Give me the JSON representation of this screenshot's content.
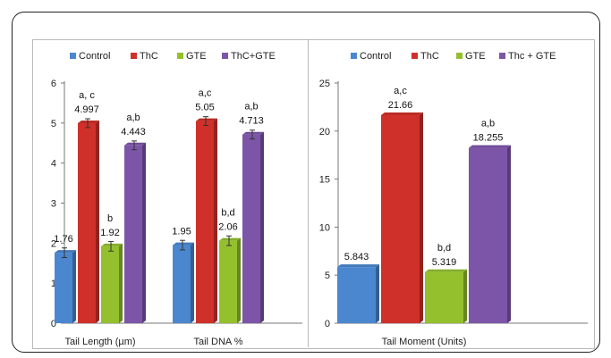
{
  "chart_data": [
    {
      "type": "bar",
      "categories": [
        "Tail Length (µm)",
        "Tail DNA %"
      ],
      "series": [
        {
          "name": "Control",
          "values": [
            1.76,
            1.95
          ],
          "labels": [
            "",
            ""
          ],
          "color": "#4a87cf"
        },
        {
          "name": "ThC",
          "values": [
            4.997,
            5.05
          ],
          "labels": [
            "a, c",
            "a,c"
          ],
          "color": "#d0302a"
        },
        {
          "name": "GTE",
          "values": [
            1.92,
            2.06
          ],
          "labels": [
            "b",
            "b,d"
          ],
          "color": "#94c02e"
        },
        {
          "name": "ThC+GTE",
          "values": [
            4.443,
            4.713
          ],
          "labels": [
            "a,b",
            "a,b"
          ],
          "color": "#7d55a8"
        }
      ],
      "value_labels": [
        [
          "1.76",
          "1.95"
        ],
        [
          "4.997",
          "5.05"
        ],
        [
          "1.92",
          "2.06"
        ],
        [
          "4.443",
          "4.713"
        ]
      ],
      "ylim": [
        0,
        6
      ],
      "yticks": [
        "0",
        "1",
        "2",
        "3",
        "4",
        "5",
        "6"
      ],
      "grid": false,
      "legend": "top",
      "error_bars": true
    },
    {
      "type": "bar",
      "categories": [
        "Tail Moment (Units)"
      ],
      "series": [
        {
          "name": "Control",
          "values": [
            5.843
          ],
          "labels": [
            ""
          ],
          "color": "#4a87cf"
        },
        {
          "name": "ThC",
          "values": [
            21.66
          ],
          "labels": [
            "a,c"
          ],
          "color": "#d0302a"
        },
        {
          "name": "GTE",
          "values": [
            5.319
          ],
          "labels": [
            "b,d"
          ],
          "color": "#94c02e"
        },
        {
          "name": "Thc + GTE",
          "values": [
            18.255
          ],
          "labels": [
            "a,b"
          ],
          "color": "#7d55a8"
        }
      ],
      "value_labels": [
        [
          "5.843"
        ],
        [
          "21.66"
        ],
        [
          "5.319"
        ],
        [
          "18.255"
        ]
      ],
      "ylim": [
        0,
        25
      ],
      "yticks": [
        "0",
        "5",
        "10",
        "15",
        "20",
        "25"
      ],
      "grid": false,
      "legend": "top",
      "error_bars": false
    }
  ]
}
